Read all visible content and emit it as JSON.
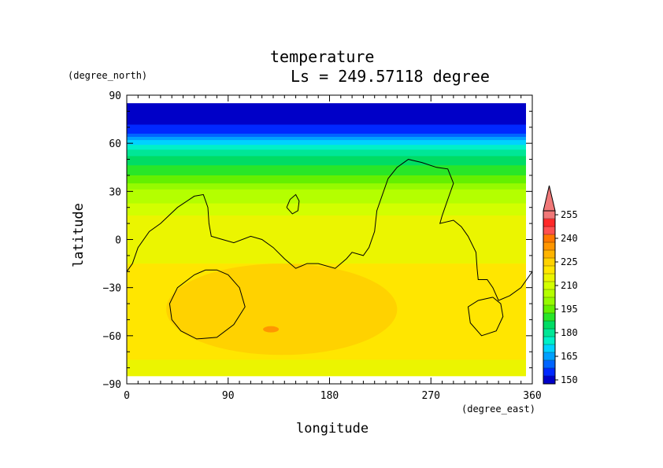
{
  "chart_data": {
    "type": "heatmap",
    "title": "temperature",
    "subtitle": "Ls = 249.57118 degree",
    "xlabel": "longitude",
    "ylabel": "latitude",
    "x_unit": "(degree_east)",
    "y_unit": "(degree_north)",
    "xlim": [
      0,
      360
    ],
    "ylim": [
      -90,
      90
    ],
    "x_ticks": [
      "0",
      "90",
      "180",
      "270",
      "360"
    ],
    "y_ticks": [
      "90",
      "60",
      "30",
      "0",
      "−30",
      "−60",
      "−90"
    ],
    "colorbar": {
      "levels": [
        150,
        155,
        160,
        165,
        170,
        175,
        180,
        185,
        190,
        195,
        200,
        205,
        210,
        215,
        220,
        225,
        230,
        235,
        240,
        245,
        250,
        255
      ],
      "tick_labels": [
        "150",
        "165",
        "180",
        "195",
        "210",
        "225",
        "240",
        "255"
      ],
      "colors": [
        "#0000c8",
        "#0028ff",
        "#0064ff",
        "#00a0ff",
        "#00d2ff",
        "#00f0c8",
        "#00e696",
        "#00dc64",
        "#28e628",
        "#64f000",
        "#96fa00",
        "#b4ff00",
        "#d2ff00",
        "#ebf500",
        "#ffe600",
        "#ffd200",
        "#ffb400",
        "#ff9600",
        "#ff7800",
        "#ff5050",
        "#ff2828",
        "#f07878"
      ],
      "extend": "max"
    },
    "background_by_latitude": [
      {
        "lat": 85,
        "value": 150
      },
      {
        "lat": 75,
        "value": 152
      },
      {
        "lat": 66,
        "value": 160
      },
      {
        "lat": 58,
        "value": 178
      },
      {
        "lat": 50,
        "value": 187
      },
      {
        "lat": 40,
        "value": 195
      },
      {
        "lat": 30,
        "value": 206
      },
      {
        "lat": 15,
        "value": 215
      },
      {
        "lat": 0,
        "value": 218
      },
      {
        "lat": -30,
        "value": 222
      },
      {
        "lat": -60,
        "value": 223
      },
      {
        "lat": -75,
        "value": 220
      },
      {
        "lat": -85,
        "value": 215
      }
    ],
    "warm_region": {
      "value": 228,
      "lon_range": [
        35,
        240
      ],
      "lat_range": [
        -72,
        -15
      ]
    },
    "cold_spot": {
      "value": 236,
      "lon": 128,
      "lat": -56
    },
    "contours": [
      {
        "name": "topography-main",
        "points": [
          [
            0,
            -20
          ],
          [
            5,
            -15
          ],
          [
            10,
            -5
          ],
          [
            20,
            5
          ],
          [
            30,
            10
          ],
          [
            45,
            20
          ],
          [
            60,
            27
          ],
          [
            68,
            28
          ],
          [
            72,
            20
          ],
          [
            73,
            10
          ],
          [
            75,
            2
          ],
          [
            85,
            0
          ],
          [
            95,
            -2
          ],
          [
            110,
            2
          ],
          [
            120,
            0
          ],
          [
            130,
            -5
          ],
          [
            140,
            -12
          ],
          [
            150,
            -18
          ],
          [
            160,
            -15
          ],
          [
            170,
            -15
          ],
          [
            185,
            -18
          ],
          [
            195,
            -12
          ],
          [
            200,
            -8
          ],
          [
            210,
            -10
          ],
          [
            215,
            -5
          ],
          [
            220,
            5
          ],
          [
            222,
            18
          ],
          [
            227,
            28
          ],
          [
            232,
            38
          ],
          [
            240,
            45
          ],
          [
            250,
            50
          ],
          [
            262,
            48
          ],
          [
            275,
            45
          ],
          [
            285,
            44
          ],
          [
            290,
            35
          ],
          [
            285,
            25
          ],
          [
            280,
            15
          ],
          [
            278,
            10
          ],
          [
            290,
            12
          ],
          [
            297,
            8
          ],
          [
            303,
            2
          ],
          [
            310,
            -8
          ],
          [
            311,
            -18
          ],
          [
            312,
            -25
          ],
          [
            320,
            -25
          ],
          [
            325,
            -30
          ],
          [
            330,
            -38
          ],
          [
            340,
            -35
          ],
          [
            350,
            -30
          ],
          [
            360,
            -20
          ]
        ]
      },
      {
        "name": "topography-island",
        "points": [
          [
            142,
            20
          ],
          [
            145,
            25
          ],
          [
            150,
            28
          ],
          [
            153,
            24
          ],
          [
            152,
            18
          ],
          [
            147,
            16
          ],
          [
            142,
            20
          ]
        ]
      },
      {
        "name": "southern-ring-1",
        "points": [
          [
            70,
            -19
          ],
          [
            60,
            -22
          ],
          [
            45,
            -30
          ],
          [
            38,
            -40
          ],
          [
            40,
            -50
          ],
          [
            48,
            -57
          ],
          [
            62,
            -62
          ],
          [
            80,
            -61
          ],
          [
            95,
            -53
          ],
          [
            105,
            -42
          ],
          [
            100,
            -30
          ],
          [
            90,
            -22
          ],
          [
            80,
            -19
          ],
          [
            70,
            -19
          ]
        ]
      },
      {
        "name": "southern-ring-2",
        "points": [
          [
            325,
            -36
          ],
          [
            312,
            -38
          ],
          [
            303,
            -42
          ],
          [
            305,
            -52
          ],
          [
            315,
            -60
          ],
          [
            328,
            -57
          ],
          [
            334,
            -48
          ],
          [
            332,
            -40
          ],
          [
            325,
            -36
          ]
        ]
      }
    ]
  }
}
